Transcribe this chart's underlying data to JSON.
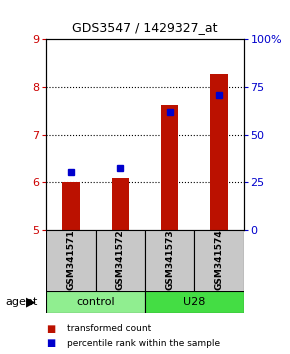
{
  "title": "GDS3547 / 1429327_at",
  "samples": [
    "GSM341571",
    "GSM341572",
    "GSM341573",
    "GSM341574"
  ],
  "bar_baseline": 5,
  "bar_tops": [
    6.0,
    6.08,
    7.62,
    8.27
  ],
  "percentile_values": [
    6.22,
    6.3,
    7.47,
    7.82
  ],
  "ylim_left": [
    5,
    9
  ],
  "ylim_right": [
    0,
    100
  ],
  "yticks_left": [
    5,
    6,
    7,
    8,
    9
  ],
  "yticks_right": [
    0,
    25,
    50,
    75,
    100
  ],
  "ytick_labels_right": [
    "0",
    "25",
    "50",
    "75",
    "100%"
  ],
  "groups": [
    {
      "label": "control",
      "samples": [
        0,
        1
      ],
      "color": "#90EE90"
    },
    {
      "label": "U28",
      "samples": [
        2,
        3
      ],
      "color": "#44DD44"
    }
  ],
  "bar_color": "#BB1100",
  "dot_color": "#0000CC",
  "legend_items": [
    {
      "color": "#BB1100",
      "label": "transformed count"
    },
    {
      "color": "#0000CC",
      "label": "percentile rank within the sample"
    }
  ]
}
